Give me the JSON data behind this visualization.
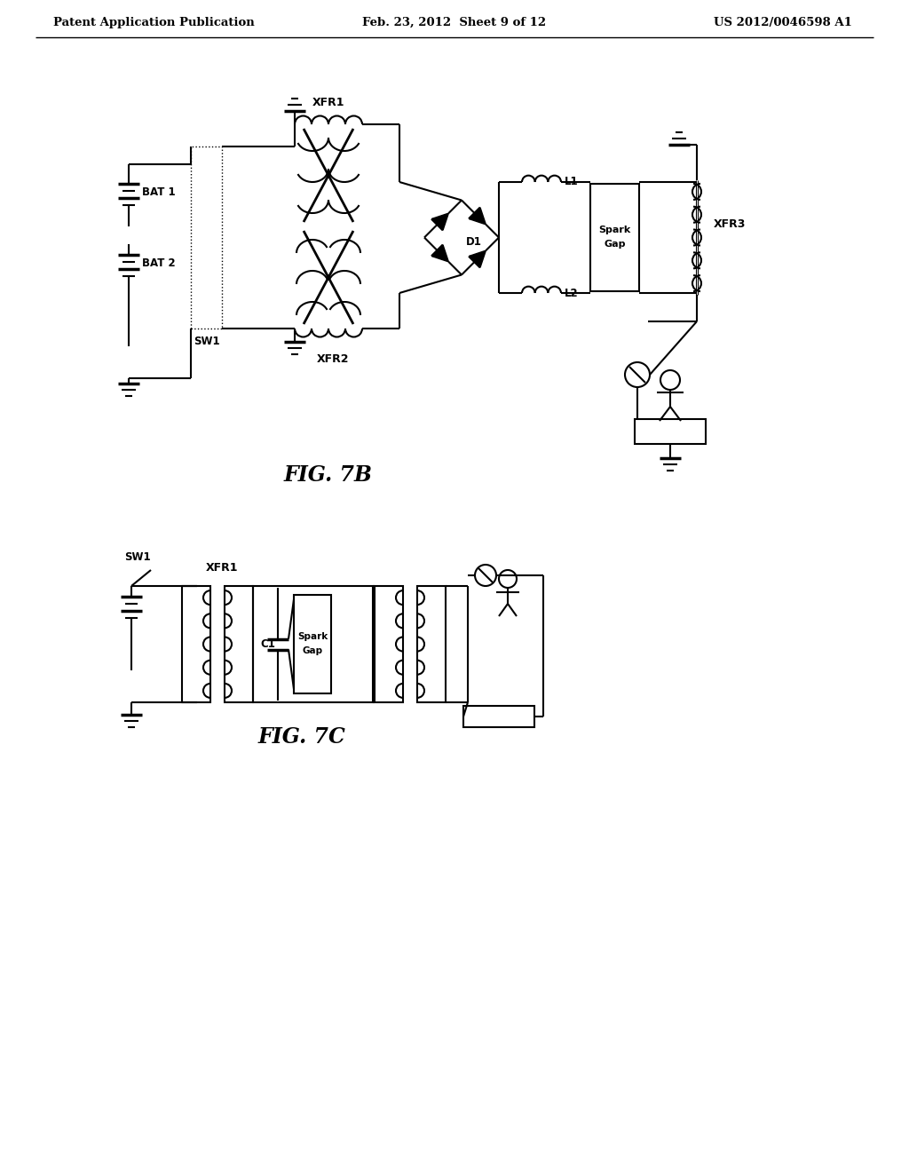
{
  "title_left": "Patent Application Publication",
  "title_center": "Feb. 23, 2012  Sheet 9 of 12",
  "title_right": "US 2012/0046598 A1",
  "fig7b_label": "FIG. 7B",
  "fig7c_label": "FIG. 7C",
  "background_color": "#ffffff",
  "line_color": "#000000",
  "lw": 1.5
}
